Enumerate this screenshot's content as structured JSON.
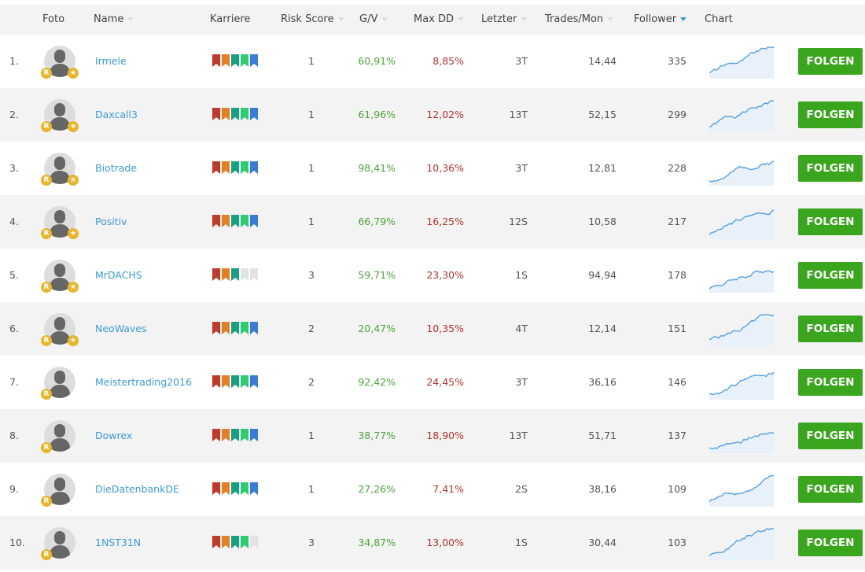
{
  "header": {
    "foto": "Foto",
    "name": "Name",
    "karriere": "Karriere",
    "risk": "Risk Score",
    "gv": "G/V",
    "maxdd": "Max DD",
    "letzter": "Letzter",
    "trades": "Trades/Mon",
    "follower": "Follower",
    "chart": "Chart"
  },
  "colors": {
    "link": "#3a9ad9",
    "gain": "#4aa53a",
    "loss": "#b3332e",
    "button": "#3aa61e",
    "ribbons": [
      "#c0392b",
      "#e67e22",
      "#16a085",
      "#2ecc71",
      "#3a7bd5"
    ],
    "ribbon_empty": "#e3e3e3"
  },
  "sorted_by": "Follower",
  "button_label": "FOLGEN",
  "rows": [
    {
      "rank": "1.",
      "name": "Irmele",
      "karriere": 5,
      "risk": "1",
      "gv": "60,91%",
      "maxdd": "8,85%",
      "letzter": "3T",
      "trades": "14,44",
      "follower": "335",
      "badges": [
        "R",
        "star"
      ]
    },
    {
      "rank": "2.",
      "name": "Daxcall3",
      "karriere": 5,
      "risk": "1",
      "gv": "61,96%",
      "maxdd": "12,02%",
      "letzter": "13T",
      "trades": "52,15",
      "follower": "299",
      "badges": [
        "R",
        "star"
      ]
    },
    {
      "rank": "3.",
      "name": "Biotrade",
      "karriere": 5,
      "risk": "1",
      "gv": "98,41%",
      "maxdd": "10,36%",
      "letzter": "3T",
      "trades": "12,81",
      "follower": "228",
      "badges": [
        "R",
        "star"
      ]
    },
    {
      "rank": "4.",
      "name": "Positiv",
      "karriere": 5,
      "risk": "1",
      "gv": "66,79%",
      "maxdd": "16,25%",
      "letzter": "12S",
      "trades": "10,58",
      "follower": "217",
      "badges": [
        "R",
        "star"
      ]
    },
    {
      "rank": "5.",
      "name": "MrDACHS",
      "karriere": 3,
      "risk": "3",
      "gv": "59,71%",
      "maxdd": "23,30%",
      "letzter": "1S",
      "trades": "94,94",
      "follower": "178",
      "badges": [
        "R",
        "star"
      ]
    },
    {
      "rank": "6.",
      "name": "NeoWaves",
      "karriere": 5,
      "risk": "2",
      "gv": "20,47%",
      "maxdd": "10,35%",
      "letzter": "4T",
      "trades": "12,14",
      "follower": "151",
      "badges": [
        "R",
        "star"
      ]
    },
    {
      "rank": "7.",
      "name": "Meistertrading2016",
      "karriere": 5,
      "risk": "2",
      "gv": "92,42%",
      "maxdd": "24,45%",
      "letzter": "3T",
      "trades": "36,16",
      "follower": "146",
      "badges": [
        "R"
      ]
    },
    {
      "rank": "8.",
      "name": "Dowrex",
      "karriere": 5,
      "risk": "1",
      "gv": "38,77%",
      "maxdd": "18,90%",
      "letzter": "13T",
      "trades": "51,71",
      "follower": "137",
      "badges": [
        "R"
      ]
    },
    {
      "rank": "9.",
      "name": "DieDatenbankDE",
      "karriere": 5,
      "risk": "1",
      "gv": "27,26%",
      "maxdd": "7,41%",
      "letzter": "2S",
      "trades": "38,16",
      "follower": "109",
      "badges": [
        "R"
      ]
    },
    {
      "rank": "10.",
      "name": "1NST31N",
      "karriere": 4,
      "risk": "3",
      "gv": "34,87%",
      "maxdd": "13,00%",
      "letzter": "1S",
      "trades": "30,44",
      "follower": "103",
      "badges": [
        "R"
      ]
    }
  ]
}
